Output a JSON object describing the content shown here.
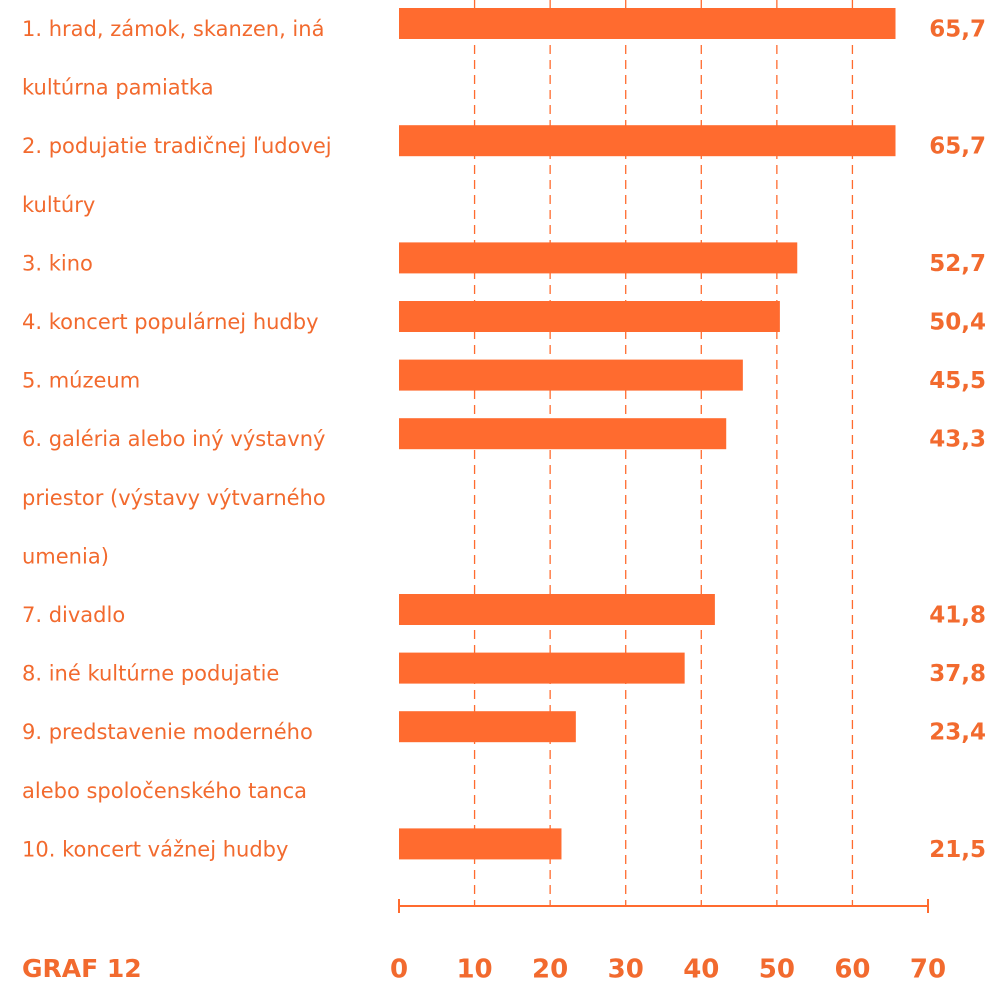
{
  "chart_data": {
    "type": "bar",
    "orientation": "horizontal",
    "title": "GRAF 12",
    "categories": [
      [
        "1. hrad, zámok, skanzen, iná",
        "kultúrna pamiatka"
      ],
      [
        "2. podujatie tradičnej ľudovej",
        "kultúry"
      ],
      [
        "3. kino"
      ],
      [
        "4. koncert populárnej hudby"
      ],
      [
        "5. múzeum"
      ],
      [
        "6. galéria alebo iný výstavný",
        "priestor (výstavy výtvarného",
        "umenia)"
      ],
      [
        "7. divadlo"
      ],
      [
        "8. iné kultúrne podujatie"
      ],
      [
        "9. predstavenie moderného",
        "alebo spoločenského tanca"
      ],
      [
        "10. koncert vážnej hudby"
      ]
    ],
    "values": [
      65.7,
      65.7,
      52.7,
      50.4,
      45.5,
      43.3,
      41.8,
      37.8,
      23.4,
      21.5
    ],
    "value_labels": [
      "65,7",
      "65,7",
      "52,7",
      "50,4",
      "45,5",
      "43,3",
      "41,8",
      "37,8",
      "23,4",
      "21,5"
    ],
    "color": "#ff6b2f",
    "xlim": [
      0,
      70
    ],
    "xticks": [
      0,
      10,
      20,
      30,
      40,
      50,
      60,
      70
    ],
    "grid": true
  }
}
